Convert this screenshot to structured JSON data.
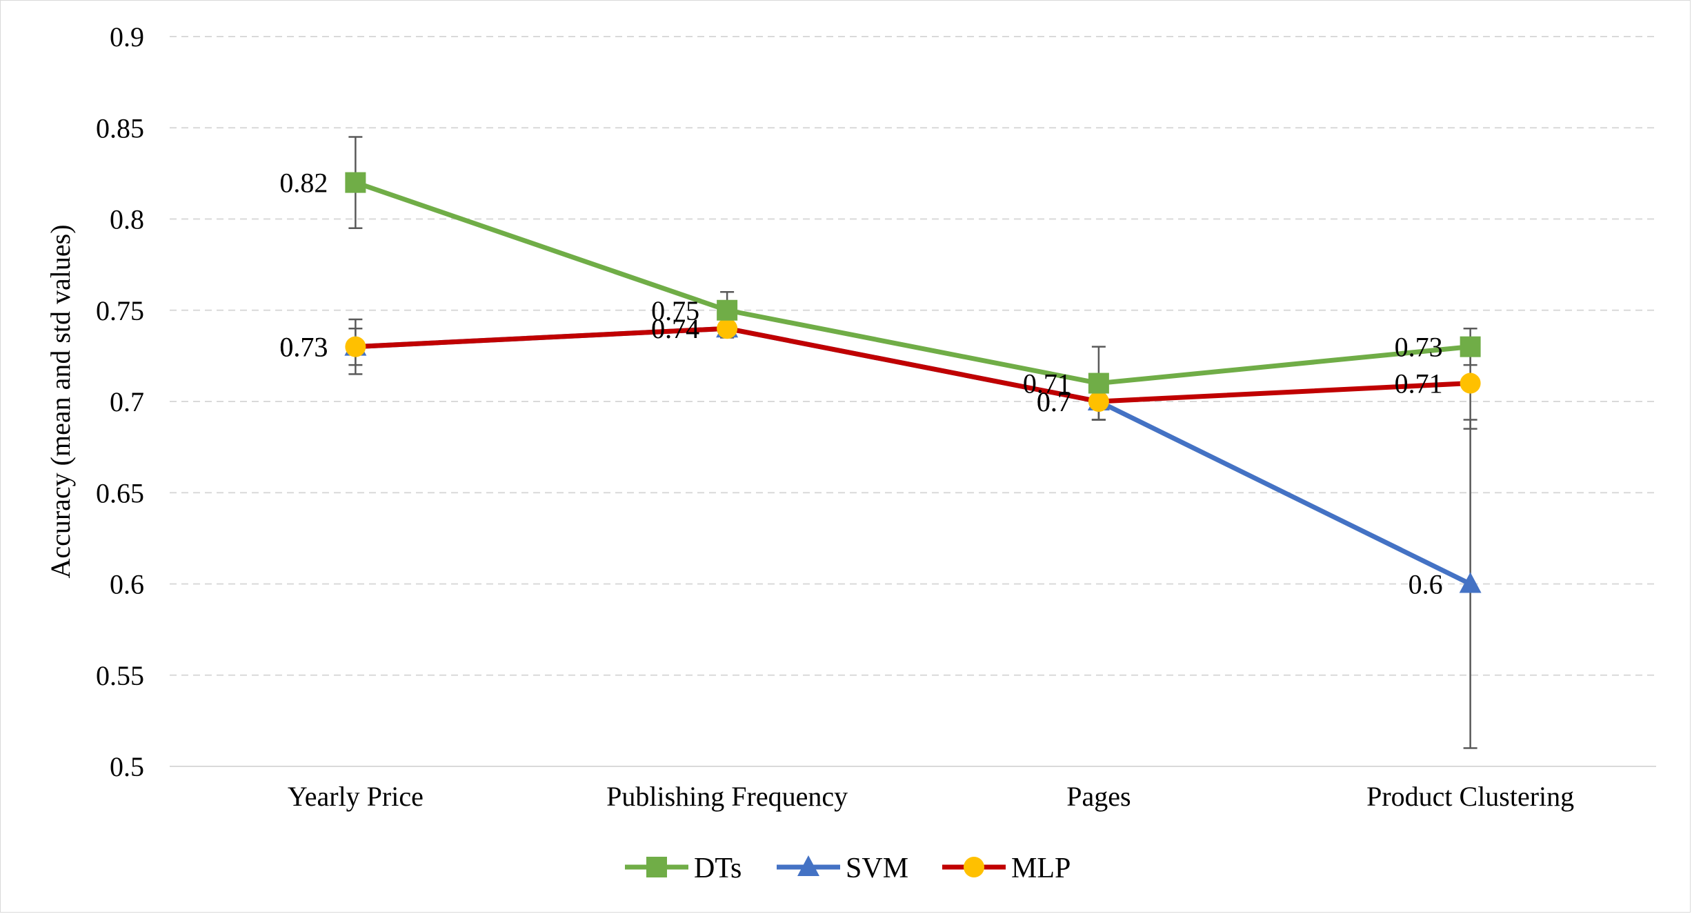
{
  "chart_data": {
    "type": "line",
    "title": "",
    "xlabel": "",
    "ylabel": "Accuracy (mean and std values)",
    "categories": [
      "Yearly Price",
      "Publishing Frequency",
      "Pages",
      "Product Clustering"
    ],
    "ylim": [
      0.5,
      0.9
    ],
    "yticks": [
      "0.5",
      "0.55",
      "0.6",
      "0.65",
      "0.7",
      "0.75",
      "0.8",
      "0.85",
      "0.9"
    ],
    "grid": true,
    "legend_position": "bottom",
    "series": [
      {
        "name": "DTs",
        "color": "#70AD47",
        "marker": "square",
        "values": [
          0.82,
          0.75,
          0.71,
          0.73
        ],
        "std": [
          0.025,
          0.01,
          0.02,
          0.01
        ],
        "labels": [
          "0.82",
          "0.75",
          "0.71",
          "0.73"
        ]
      },
      {
        "name": "SVM",
        "color": "#4472C4",
        "marker": "triangle",
        "values": [
          0.73,
          0.74,
          0.7,
          0.6
        ],
        "std": [
          0.01,
          0.005,
          0.01,
          0.09
        ],
        "labels": [
          "0.73",
          "0.74",
          "0.7",
          "0.6"
        ]
      },
      {
        "name": "MLP",
        "color": "#C00000",
        "marker_color": "#FFC000",
        "marker": "circle",
        "values": [
          0.73,
          0.74,
          0.7,
          0.71
        ],
        "std": [
          0.015,
          0.005,
          0.01,
          0.025
        ],
        "labels": [
          "0.73",
          "0.74",
          "0.7",
          "0.71"
        ]
      }
    ]
  }
}
